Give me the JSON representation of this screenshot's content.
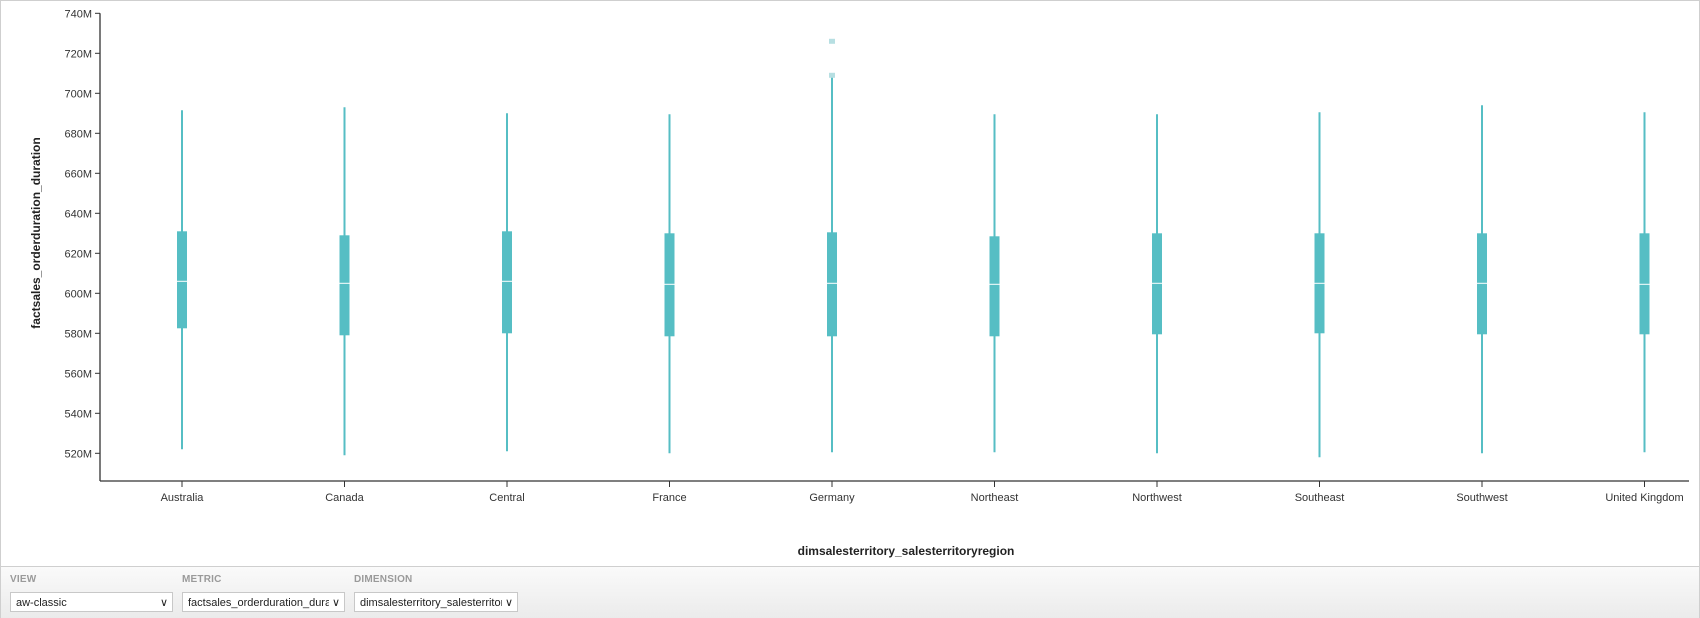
{
  "chart_data": {
    "type": "boxplot",
    "xlabel": "dimsalesterritory_salesterritoryregion",
    "ylabel": "factsales_orderduration_duration",
    "ylim": [
      505,
      740
    ],
    "yticks": [
      520,
      540,
      560,
      580,
      600,
      620,
      640,
      660,
      680,
      700,
      720,
      740
    ],
    "ytick_labels": [
      "520M",
      "540M",
      "560M",
      "580M",
      "600M",
      "620M",
      "640M",
      "660M",
      "680M",
      "700M",
      "720M",
      "740M"
    ],
    "unit": "M",
    "grid": false,
    "categories": [
      "Australia",
      "Canada",
      "Central",
      "France",
      "Germany",
      "Northeast",
      "Northwest",
      "Southeast",
      "Southwest",
      "United Kingdom"
    ],
    "boxes": [
      {
        "min": 522,
        "q1": 582.5,
        "median": 606,
        "q3": 631,
        "max": 691.5,
        "outliers": []
      },
      {
        "min": 519,
        "q1": 579,
        "median": 605,
        "q3": 629,
        "max": 693,
        "outliers": []
      },
      {
        "min": 521,
        "q1": 580,
        "median": 606,
        "q3": 631,
        "max": 690,
        "outliers": []
      },
      {
        "min": 520,
        "q1": 578.5,
        "median": 604.5,
        "q3": 630,
        "max": 689.5,
        "outliers": []
      },
      {
        "min": 520.5,
        "q1": 578.5,
        "median": 605,
        "q3": 630.5,
        "max": 708,
        "outliers": [
          709,
          726
        ]
      },
      {
        "min": 520.5,
        "q1": 578.5,
        "median": 604.5,
        "q3": 628.5,
        "max": 689.5,
        "outliers": []
      },
      {
        "min": 520,
        "q1": 579.5,
        "median": 605,
        "q3": 630,
        "max": 689.5,
        "outliers": []
      },
      {
        "min": 518,
        "q1": 580,
        "median": 605,
        "q3": 630,
        "max": 690.5,
        "outliers": []
      },
      {
        "min": 520,
        "q1": 579.5,
        "median": 605,
        "q3": 630,
        "max": 694,
        "outliers": []
      },
      {
        "min": 520.5,
        "q1": 579.5,
        "median": 604.5,
        "q3": 630,
        "max": 690.5,
        "outliers": []
      }
    ],
    "colors": {
      "box": "#56bec4",
      "outlier": "#b7dfe2",
      "median": "#ffffff"
    }
  },
  "controls": {
    "view": {
      "label": "VIEW",
      "value": "aw-classic"
    },
    "metric": {
      "label": "METRIC",
      "value": "factsales_orderduration_dura"
    },
    "dimension": {
      "label": "DIMENSION",
      "value": "dimsalesterritory_salesterritor"
    }
  }
}
